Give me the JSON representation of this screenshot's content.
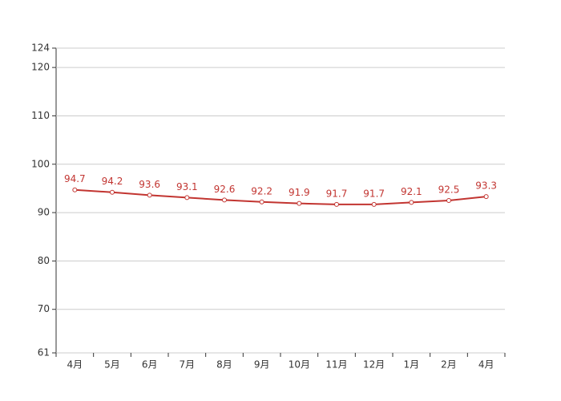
{
  "chart_data": {
    "type": "line",
    "categories": [
      "4月",
      "5月",
      "6月",
      "7月",
      "8月",
      "9月",
      "10月",
      "11月",
      "12月",
      "1月",
      "2月",
      "4月"
    ],
    "values": [
      94.7,
      94.2,
      93.6,
      93.1,
      92.6,
      92.2,
      91.9,
      91.7,
      91.7,
      92.1,
      92.5,
      93.3
    ],
    "color": "#c23531",
    "ylim": [
      61,
      124
    ],
    "yticks": [
      61,
      70,
      80,
      90,
      100,
      110,
      120,
      124
    ],
    "grid": true
  }
}
